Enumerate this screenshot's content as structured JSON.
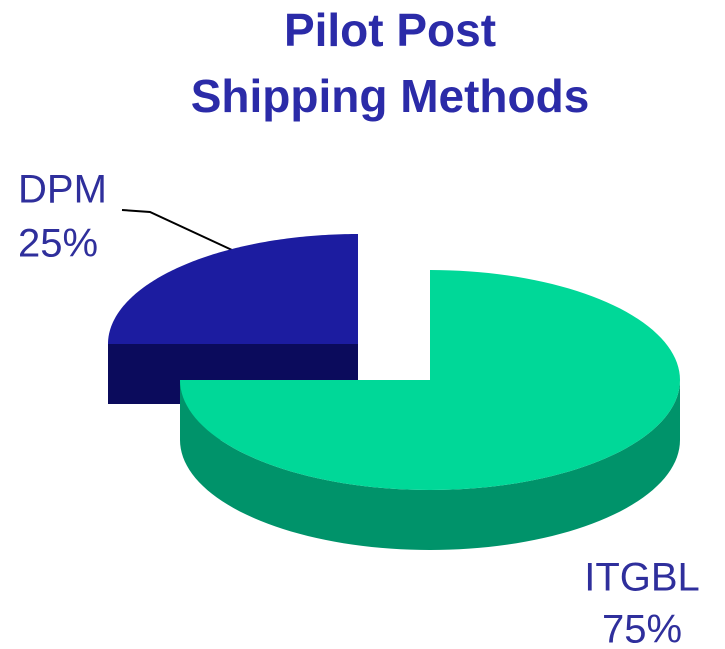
{
  "chart_data": {
    "type": "pie",
    "title": [
      "Pilot Post",
      "Shipping Methods"
    ],
    "categories": [
      "DPM",
      "ITGBL"
    ],
    "values": [
      25,
      75
    ],
    "value_labels": [
      "25%",
      "75%"
    ],
    "colors": [
      "#1c1ca0",
      "#00d898"
    ],
    "side_colors": [
      "#0b0b5c",
      "#00936a"
    ]
  }
}
